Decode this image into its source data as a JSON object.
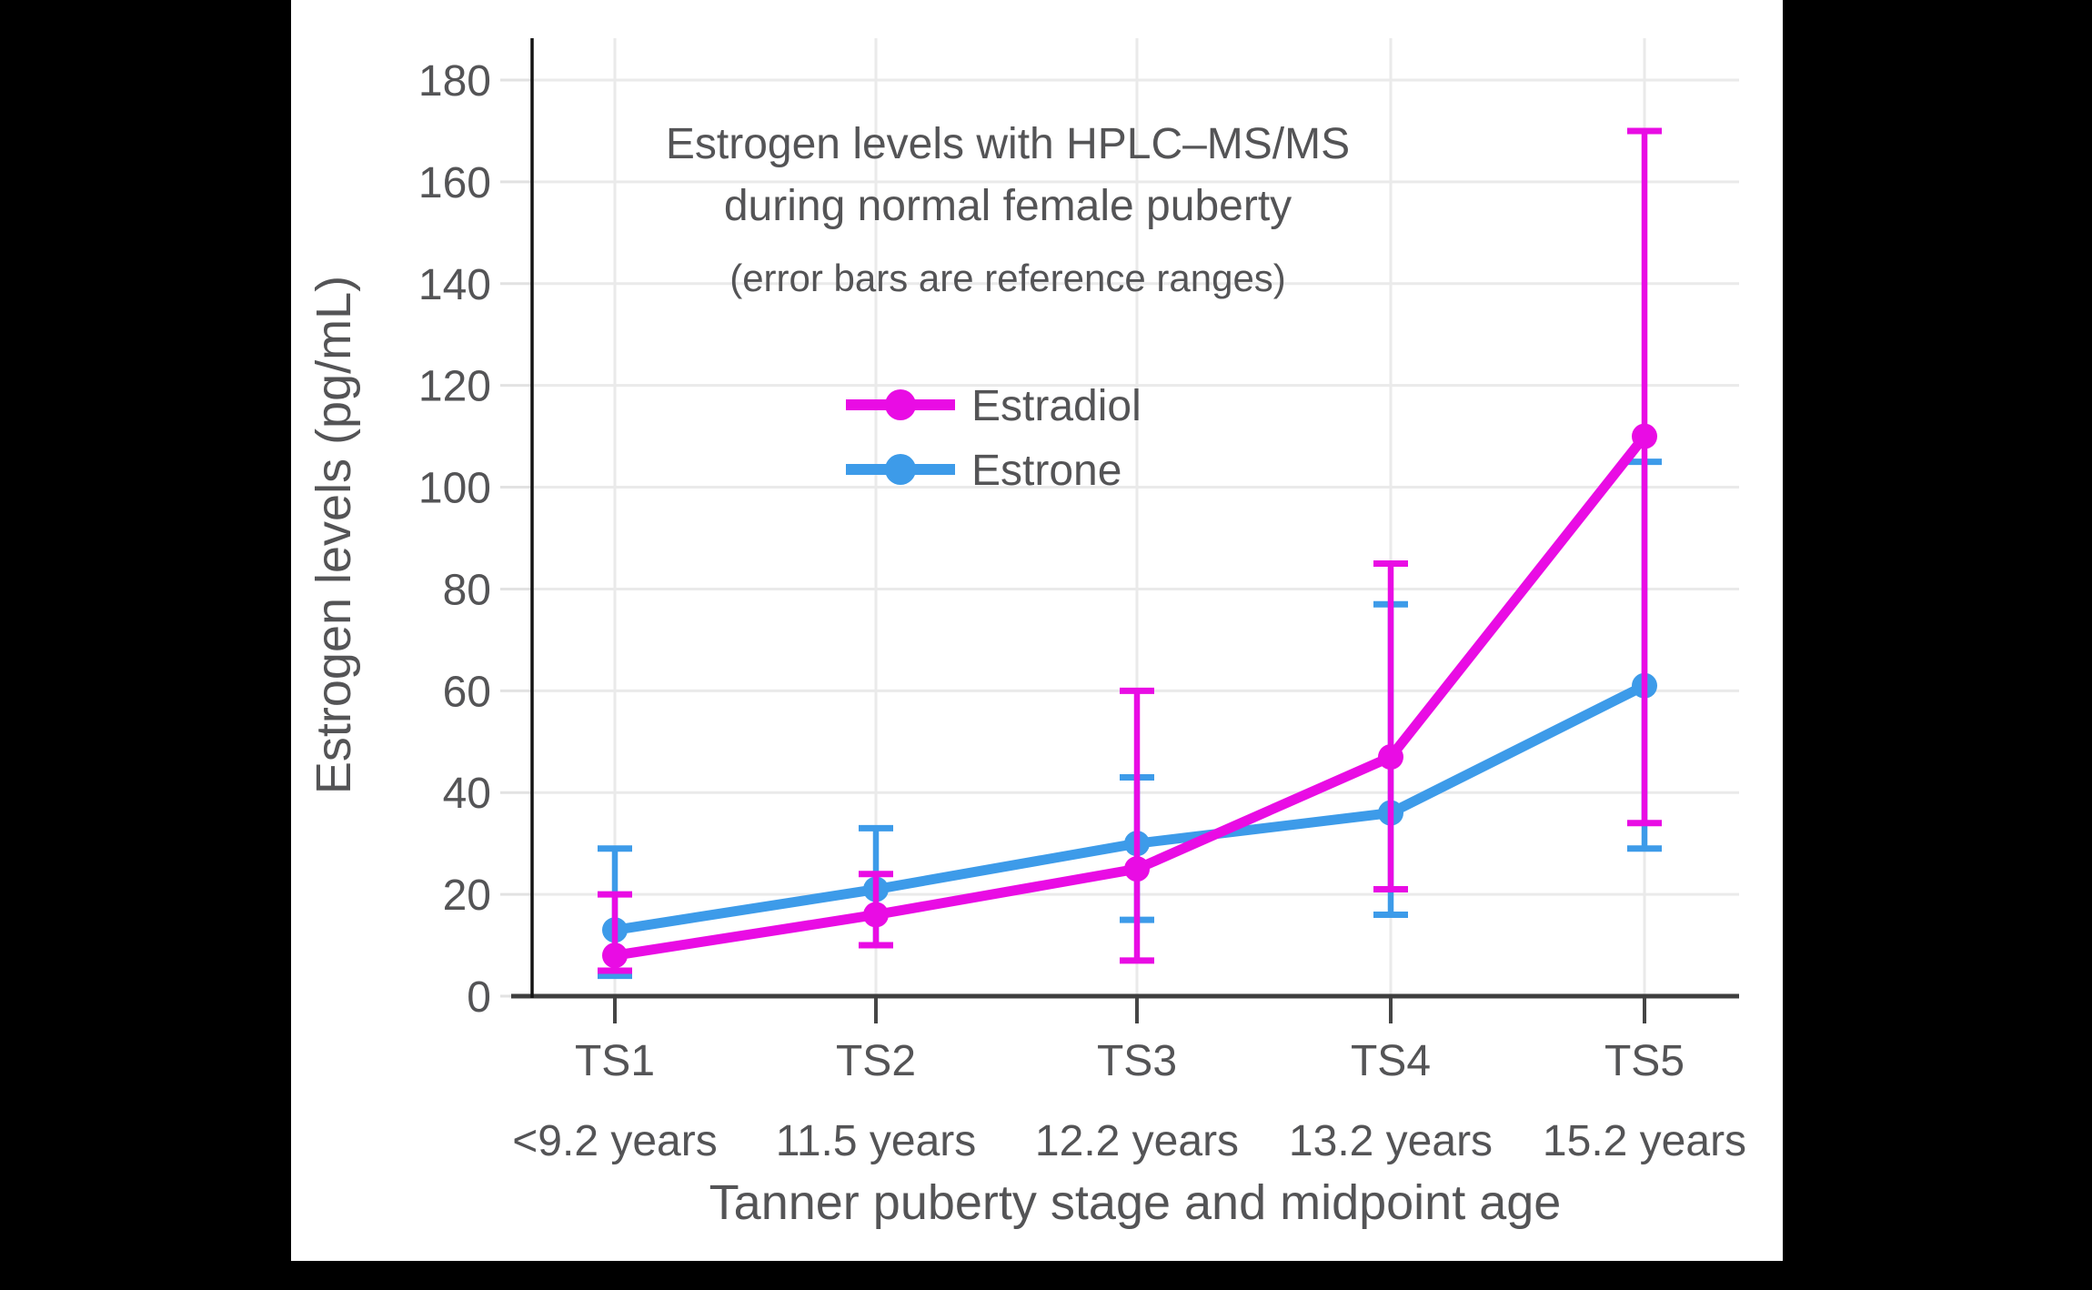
{
  "page": {
    "background": "#000000",
    "card_background": "#ffffff",
    "text_color": "#545456"
  },
  "chart_data": {
    "type": "line",
    "title": "Estrogen levels with HPLC–MS/MS",
    "title_line2": "during normal female puberty",
    "subtitle": "(error bars are reference ranges)",
    "xlabel": "Tanner puberty stage and midpoint age",
    "ylabel": "Estrogen levels (pg/mL)",
    "categories": [
      "TS1",
      "TS2",
      "TS3",
      "TS4",
      "TS5"
    ],
    "category_ages": [
      "<9.2 years",
      "11.5 years",
      "12.2 years",
      "13.2 years",
      "15.2 years"
    ],
    "y_ticks": [
      0,
      20,
      40,
      60,
      80,
      100,
      120,
      140,
      160,
      180
    ],
    "ylim": [
      0,
      188
    ],
    "grid": true,
    "legend_position": "inside upper center",
    "error_bars_meaning": "reference ranges",
    "series": [
      {
        "name": "Estrone",
        "color": "#3d9be9",
        "values": [
          13,
          21,
          30,
          36,
          61
        ],
        "range_low": [
          4,
          10,
          15,
          16,
          29
        ],
        "range_high": [
          29,
          33,
          43,
          77,
          105
        ]
      },
      {
        "name": "Estradiol",
        "color": "#e90ce4",
        "values": [
          8,
          16,
          25,
          47,
          110
        ],
        "range_low": [
          5,
          10,
          7,
          21,
          34
        ],
        "range_high": [
          20,
          24,
          60,
          85,
          170
        ]
      }
    ],
    "legend": [
      {
        "label": "Estradiol",
        "color": "#e90ce4"
      },
      {
        "label": "Estrone",
        "color": "#3d9be9"
      }
    ]
  }
}
